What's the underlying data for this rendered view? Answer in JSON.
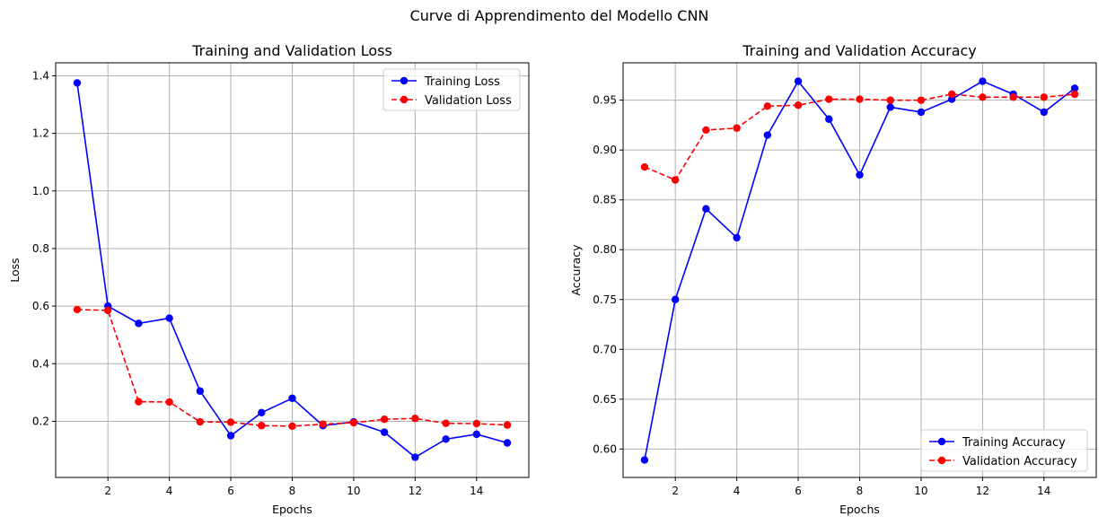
{
  "suptitle": "Curve di Apprendimento del Modello CNN",
  "colors": {
    "training": "#0000ff",
    "validation": "#ff0000",
    "grid": "#b0b0b0"
  },
  "chart_data": [
    {
      "type": "line",
      "title": "Training and Validation Loss",
      "xlabel": "Epochs",
      "ylabel": "Loss",
      "xlim": [
        0.3,
        15.7
      ],
      "ylim": [
        0.005,
        1.445
      ],
      "xticks": [
        2,
        4,
        6,
        8,
        10,
        12,
        14
      ],
      "yticks": [
        0.2,
        0.4,
        0.6,
        0.8,
        1.0,
        1.2,
        1.4
      ],
      "ytick_labels": [
        "0.2",
        "0.4",
        "0.6",
        "0.8",
        "1.0",
        "1.2",
        "1.4"
      ],
      "grid": true,
      "legend_position": "upper right",
      "x": [
        1,
        2,
        3,
        4,
        5,
        6,
        7,
        8,
        9,
        10,
        11,
        12,
        13,
        14,
        15
      ],
      "series": [
        {
          "name": "Training Loss",
          "style": "solid",
          "color": "#0000ff",
          "values": [
            1.375,
            0.6,
            0.54,
            0.558,
            0.305,
            0.15,
            0.23,
            0.28,
            0.185,
            0.198,
            0.162,
            0.075,
            0.138,
            0.155,
            0.125
          ]
        },
        {
          "name": "Validation Loss",
          "style": "dashed",
          "color": "#ff0000",
          "values": [
            0.588,
            0.585,
            0.268,
            0.267,
            0.198,
            0.197,
            0.185,
            0.183,
            0.19,
            0.195,
            0.207,
            0.21,
            0.193,
            0.192,
            0.187
          ]
        }
      ]
    },
    {
      "type": "line",
      "title": "Training and Validation Accuracy",
      "xlabel": "Epochs",
      "ylabel": "Accuracy",
      "xlim": [
        0.3,
        15.7
      ],
      "ylim": [
        0.5715,
        0.9875
      ],
      "xticks": [
        2,
        4,
        6,
        8,
        10,
        12,
        14
      ],
      "yticks": [
        0.6,
        0.65,
        0.7,
        0.75,
        0.8,
        0.85,
        0.9,
        0.95
      ],
      "ytick_labels": [
        "0.60",
        "0.65",
        "0.70",
        "0.75",
        "0.80",
        "0.85",
        "0.90",
        "0.95"
      ],
      "grid": true,
      "legend_position": "lower right",
      "x": [
        1,
        2,
        3,
        4,
        5,
        6,
        7,
        8,
        9,
        10,
        11,
        12,
        13,
        14,
        15
      ],
      "series": [
        {
          "name": "Training Accuracy",
          "style": "solid",
          "color": "#0000ff",
          "values": [
            0.589,
            0.75,
            0.841,
            0.812,
            0.915,
            0.969,
            0.931,
            0.875,
            0.943,
            0.938,
            0.951,
            0.969,
            0.956,
            0.938,
            0.962
          ]
        },
        {
          "name": "Validation Accuracy",
          "style": "dashed",
          "color": "#ff0000",
          "values": [
            0.883,
            0.87,
            0.92,
            0.922,
            0.944,
            0.945,
            0.951,
            0.951,
            0.95,
            0.95,
            0.956,
            0.953,
            0.953,
            0.953,
            0.956
          ]
        }
      ]
    }
  ]
}
